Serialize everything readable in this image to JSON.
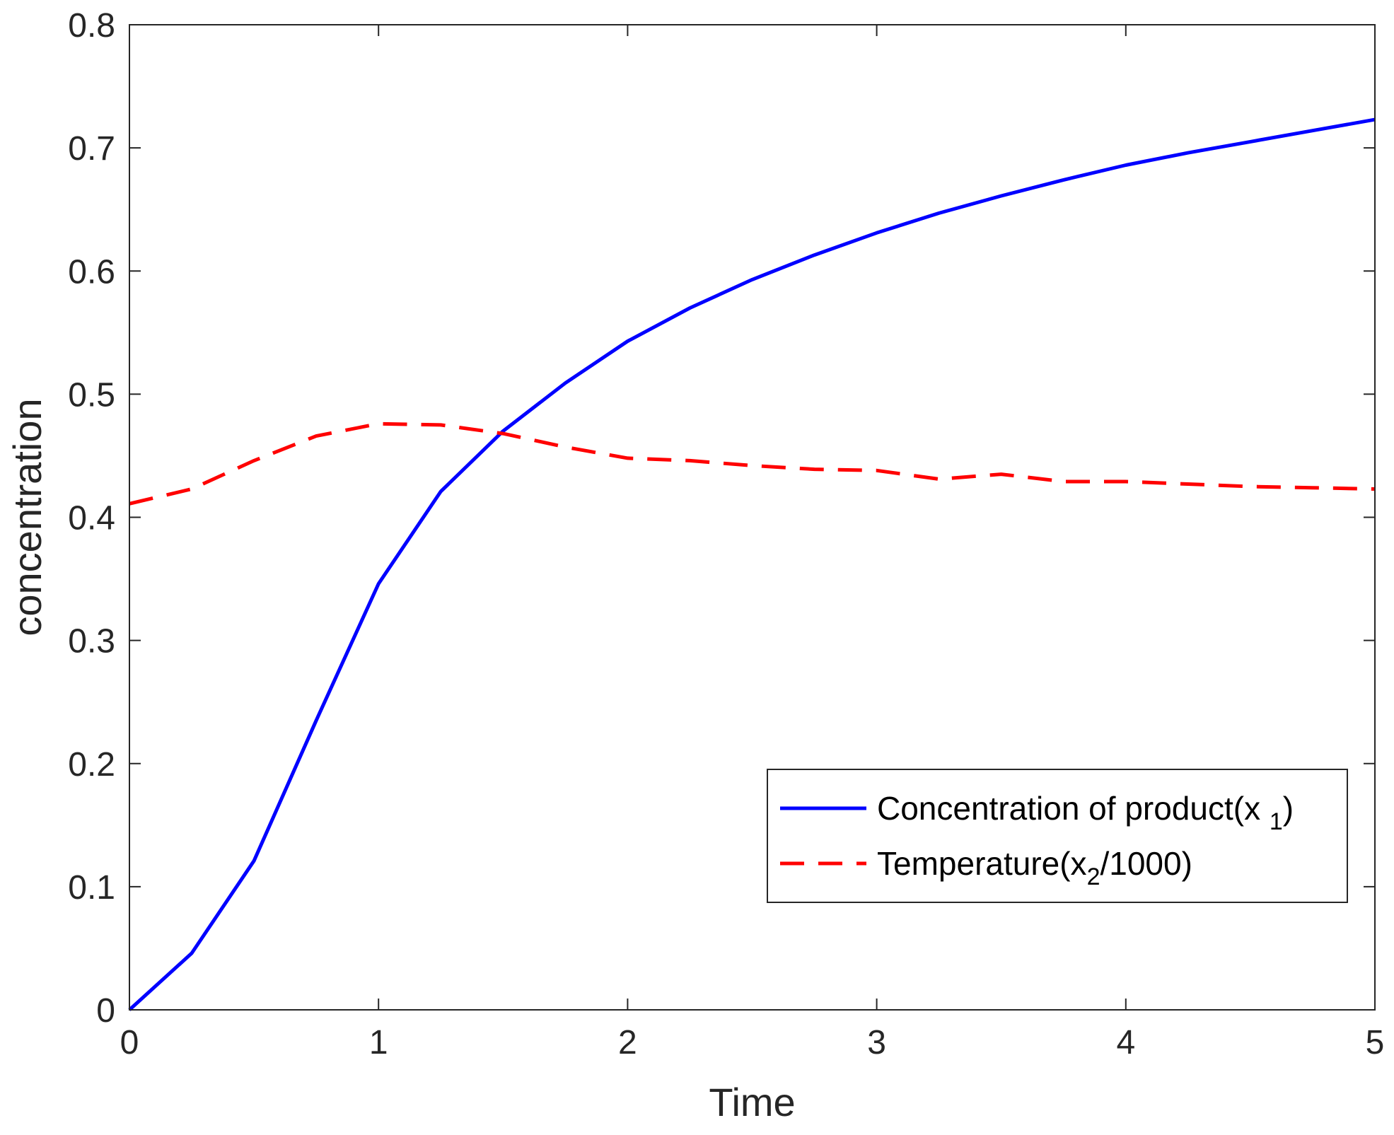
{
  "chart_data": {
    "type": "line",
    "title": "",
    "xlabel": "Time",
    "ylabel": "concentration",
    "xlim": [
      0,
      5
    ],
    "ylim": [
      0,
      0.8
    ],
    "xticks": [
      0,
      1,
      2,
      3,
      4,
      5
    ],
    "yticks": [
      0,
      0.1,
      0.2,
      0.3,
      0.4,
      0.5,
      0.6,
      0.7,
      0.8
    ],
    "xtick_labels": [
      "0",
      "1",
      "2",
      "3",
      "4",
      "5"
    ],
    "ytick_labels": [
      "0",
      "0.1",
      "0.2",
      "0.3",
      "0.4",
      "0.5",
      "0.6",
      "0.7",
      "0.8"
    ],
    "grid": false,
    "legend_position": "bottom-right",
    "series": [
      {
        "name": "Concentration of product(x 1)",
        "name_parts": [
          "Concentration of product(x ",
          "1",
          ")"
        ],
        "color": "#0000ff",
        "style": "solid",
        "x": [
          0,
          0.25,
          0.5,
          0.75,
          1.0,
          1.25,
          1.5,
          1.75,
          2.0,
          2.25,
          2.5,
          2.75,
          3.0,
          3.25,
          3.5,
          3.75,
          4.0,
          4.25,
          4.5,
          4.75,
          5.0
        ],
        "y": [
          0,
          0.046,
          0.121,
          0.235,
          0.346,
          0.421,
          0.47,
          0.509,
          0.543,
          0.57,
          0.593,
          0.613,
          0.631,
          0.647,
          0.661,
          0.674,
          0.686,
          0.696,
          0.705,
          0.714,
          0.723
        ]
      },
      {
        "name": "Temperature(x2/1000)",
        "name_parts": [
          "Temperature(x",
          "2",
          "/1000)"
        ],
        "color": "#ff0000",
        "style": "dashed",
        "x": [
          0,
          0.25,
          0.5,
          0.75,
          1.0,
          1.25,
          1.5,
          1.75,
          2.0,
          2.25,
          2.5,
          2.75,
          3.0,
          3.25,
          3.5,
          3.75,
          4.0,
          4.25,
          4.5,
          4.75,
          5.0
        ],
        "y": [
          0.411,
          0.423,
          0.446,
          0.466,
          0.476,
          0.475,
          0.468,
          0.457,
          0.448,
          0.446,
          0.442,
          0.439,
          0.438,
          0.431,
          0.435,
          0.429,
          0.429,
          0.427,
          0.425,
          0.424,
          0.423
        ]
      }
    ]
  }
}
